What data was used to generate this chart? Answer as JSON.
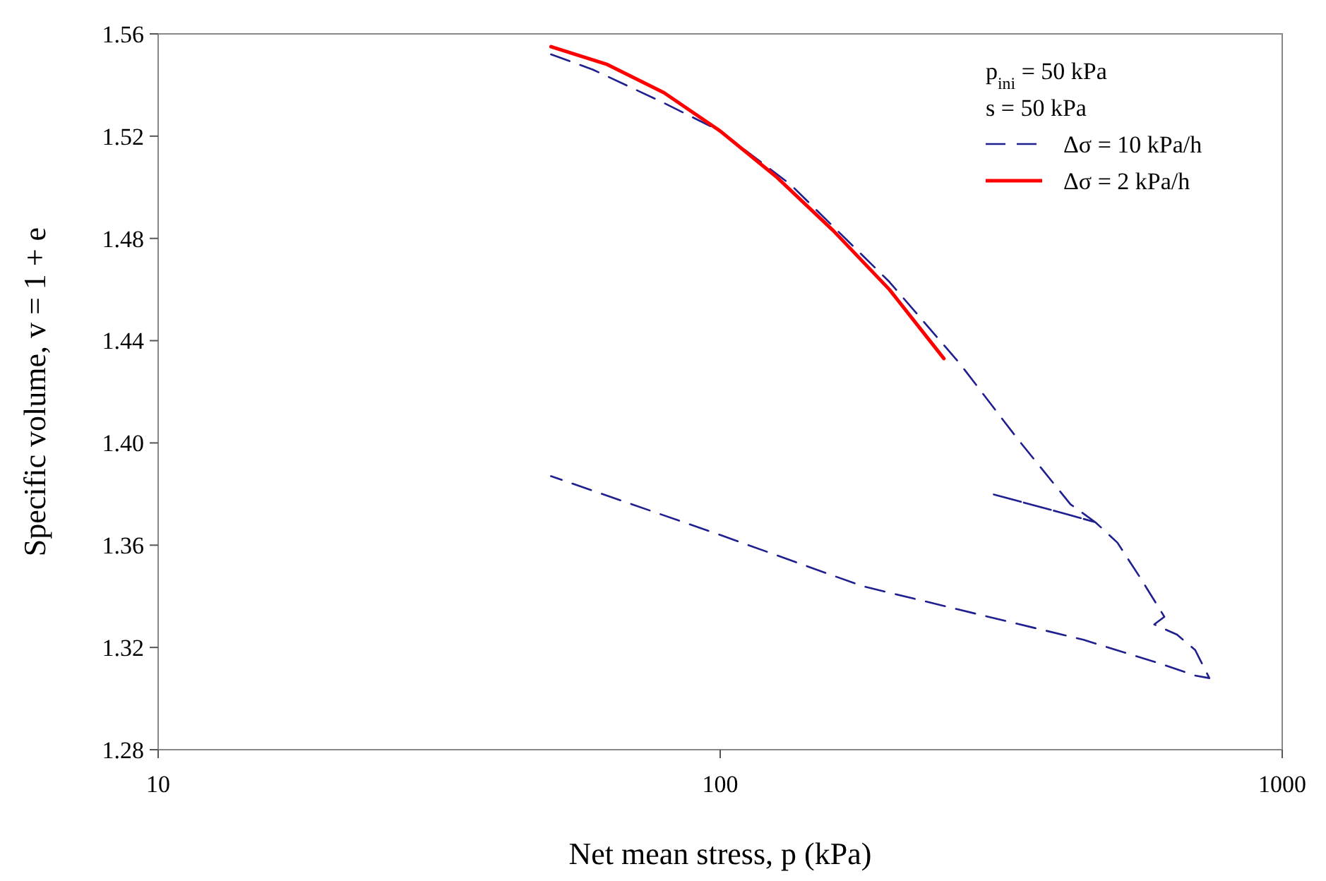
{
  "chart_data": {
    "type": "line",
    "xlabel": "Net mean stress, p (kPa)",
    "ylabel": "Specific volume, v = 1 + e",
    "log": "x",
    "xlim": [
      10,
      1000
    ],
    "xticks": [
      10,
      100,
      1000
    ],
    "ylim": [
      1.28,
      1.56
    ],
    "yticks": [
      1.28,
      1.32,
      1.36,
      {
        "value": 1.4,
        "label": "1.40"
      },
      1.44,
      1.48,
      1.52,
      1.56
    ],
    "grid": false,
    "legend": "top right",
    "annotations": [
      "p$_{ini}$ = 50 kPa",
      "s = 50 kPa"
    ],
    "series": [
      {
        "name": "Δσ = 10 kPa/h",
        "color": "#1f1f8f",
        "line_style": "dashed",
        "x": [
          50,
          59.4,
          79.4,
          100,
          133.5,
          200,
          267,
          337,
          420,
          465,
          400,
          305,
          400,
          465,
          509,
          560,
          617,
          592,
          650,
          700,
          742,
          700,
          600,
          443,
          327,
          179,
          100,
          50
        ],
        "values": [
          1.552,
          1.546,
          1.533,
          1.522,
          1.501,
          1.463,
          1.431,
          1.402,
          1.376,
          1.369,
          1.373,
          1.38,
          1.373,
          1.369,
          1.361,
          1.347,
          1.332,
          1.329,
          1.325,
          1.319,
          1.308,
          1.309,
          1.314,
          1.323,
          1.33,
          1.344,
          1.364,
          1.387
        ]
      },
      {
        "name": "Δσ = 2 kPa/h",
        "color": "#ff0000",
        "line_style": "solid",
        "x": [
          50,
          63,
          79.4,
          100,
          126,
          159,
          200,
          250
        ],
        "values": [
          1.555,
          1.548,
          1.537,
          1.522,
          1.504,
          1.483,
          1.46,
          1.433
        ]
      }
    ]
  }
}
